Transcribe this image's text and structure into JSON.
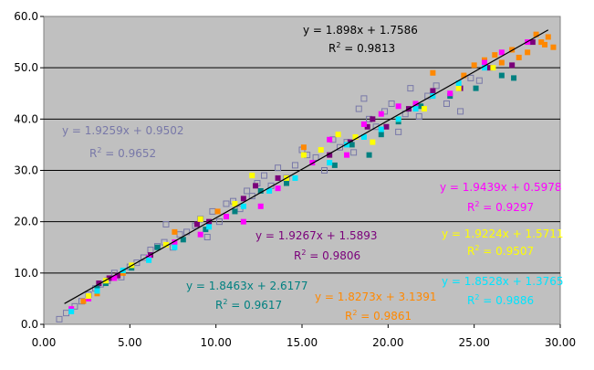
{
  "chart_data": {
    "type": "scatter",
    "title": "",
    "xlabel": "",
    "ylabel": "",
    "xlim": [
      0,
      30
    ],
    "ylim": [
      0,
      60
    ],
    "x_ticks": [
      "0.00",
      "5.00",
      "10.00",
      "15.00",
      "20.00",
      "25.00",
      "30.00"
    ],
    "y_ticks": [
      "0.0",
      "10.0",
      "20.0",
      "30.0",
      "40.0",
      "50.0",
      "60.0"
    ],
    "plot_background": "#c0c0c0",
    "grid": "horizontal",
    "trendline": {
      "slope": 1.898,
      "intercept": 1.7586,
      "x_range": [
        1.2,
        29.3
      ],
      "color": "#000000"
    },
    "series": [
      {
        "color": "#7878a8",
        "marker": "hollow-square",
        "equation": "y = 1.9259x + 0.9502",
        "r2_prefix": "R",
        "r2_value": "= 0.9652",
        "points": [
          [
            0.9,
            1.0
          ],
          [
            1.3,
            2.2
          ],
          [
            1.8,
            3.5
          ],
          [
            2.2,
            4.5
          ],
          [
            2.6,
            5.8
          ],
          [
            3.0,
            7.0
          ],
          [
            3.3,
            7.8
          ],
          [
            3.7,
            8.5
          ],
          [
            4.1,
            10.0
          ],
          [
            4.5,
            9.2
          ],
          [
            5.0,
            11.2
          ],
          [
            5.4,
            12.0
          ],
          [
            5.8,
            13.0
          ],
          [
            6.2,
            14.5
          ],
          [
            6.6,
            15.2
          ],
          [
            7.0,
            16.0
          ],
          [
            7.1,
            19.5
          ],
          [
            7.5,
            15.0
          ],
          [
            7.9,
            17.5
          ],
          [
            8.3,
            18.0
          ],
          [
            8.8,
            19.2
          ],
          [
            9.1,
            20.5
          ],
          [
            9.5,
            17.0
          ],
          [
            9.8,
            22.0
          ],
          [
            10.2,
            20.0
          ],
          [
            10.6,
            23.5
          ],
          [
            11.0,
            24.0
          ],
          [
            11.4,
            22.5
          ],
          [
            11.8,
            26.0
          ],
          [
            12.1,
            25.0
          ],
          [
            12.4,
            27.5
          ],
          [
            12.8,
            29.0
          ],
          [
            13.2,
            27.0
          ],
          [
            13.6,
            30.5
          ],
          [
            14.1,
            28.5
          ],
          [
            14.6,
            31.0
          ],
          [
            15.0,
            34.0
          ],
          [
            15.3,
            33.0
          ],
          [
            15.8,
            32.5
          ],
          [
            16.3,
            30.0
          ],
          [
            16.8,
            36.0
          ],
          [
            17.2,
            34.5
          ],
          [
            17.6,
            35.5
          ],
          [
            18.0,
            33.5
          ],
          [
            18.3,
            42.0
          ],
          [
            18.6,
            44.0
          ],
          [
            18.9,
            40.0
          ],
          [
            19.3,
            38.5
          ],
          [
            19.8,
            41.5
          ],
          [
            20.2,
            43.0
          ],
          [
            20.6,
            37.5
          ],
          [
            21.0,
            41.0
          ],
          [
            21.3,
            46.0
          ],
          [
            21.8,
            40.5
          ],
          [
            22.3,
            44.5
          ],
          [
            22.8,
            46.5
          ],
          [
            23.4,
            43.0
          ],
          [
            24.2,
            41.5
          ],
          [
            24.8,
            48.0
          ],
          [
            25.3,
            47.5
          ]
        ]
      },
      {
        "color": "#7a007a",
        "marker": "square",
        "equation": "y = 1.9267x + 1.5893",
        "r2_prefix": "R",
        "r2_value": "= 0.9806",
        "points": [
          [
            3.2,
            8.0
          ],
          [
            3.8,
            9.0
          ],
          [
            4.3,
            9.5
          ],
          [
            6.2,
            13.5
          ],
          [
            8.9,
            19.5
          ],
          [
            9.6,
            20.0
          ],
          [
            11.6,
            24.5
          ],
          [
            12.3,
            27.0
          ],
          [
            13.6,
            28.5
          ],
          [
            16.6,
            33.0
          ],
          [
            17.8,
            35.5
          ],
          [
            18.8,
            38.5
          ],
          [
            19.1,
            40.0
          ],
          [
            19.9,
            38.5
          ],
          [
            21.2,
            42.0
          ],
          [
            22.6,
            45.5
          ],
          [
            24.2,
            46.0
          ],
          [
            25.9,
            50.0
          ],
          [
            27.2,
            50.5
          ],
          [
            28.4,
            55.0
          ]
        ]
      },
      {
        "color": "#008080",
        "marker": "square",
        "equation": "y = 1.8463x + 2.6177",
        "r2_prefix": "R",
        "r2_value": "= 0.9617",
        "points": [
          [
            3.1,
            7.0
          ],
          [
            3.6,
            8.0
          ],
          [
            5.1,
            11.0
          ],
          [
            6.6,
            15.0
          ],
          [
            8.1,
            16.5
          ],
          [
            9.4,
            18.5
          ],
          [
            11.1,
            22.0
          ],
          [
            12.6,
            26.0
          ],
          [
            14.1,
            27.5
          ],
          [
            16.9,
            31.0
          ],
          [
            17.9,
            35.0
          ],
          [
            18.9,
            33.0
          ],
          [
            19.6,
            37.0
          ],
          [
            20.6,
            39.5
          ],
          [
            21.9,
            42.5
          ],
          [
            23.6,
            44.5
          ],
          [
            25.1,
            46.0
          ],
          [
            26.6,
            48.5
          ],
          [
            27.3,
            48.0
          ]
        ]
      },
      {
        "color": "#ff8800",
        "marker": "square",
        "equation": "y = 1.8273x + 3.1391",
        "r2_prefix": "R",
        "r2_value": "= 0.9861",
        "points": [
          [
            2.3,
            4.5
          ],
          [
            3.1,
            6.0
          ],
          [
            4.6,
            10.0
          ],
          [
            7.6,
            18.0
          ],
          [
            10.1,
            22.0
          ],
          [
            15.1,
            34.5
          ],
          [
            22.6,
            49.0
          ],
          [
            24.4,
            48.5
          ],
          [
            25.0,
            50.5
          ],
          [
            25.6,
            51.5
          ],
          [
            26.2,
            52.5
          ],
          [
            26.6,
            51.0
          ],
          [
            27.2,
            53.5
          ],
          [
            27.6,
            52.0
          ],
          [
            28.1,
            53.0
          ],
          [
            28.6,
            56.5
          ],
          [
            28.9,
            55.0
          ],
          [
            29.1,
            54.5
          ],
          [
            29.3,
            56.0
          ],
          [
            29.6,
            54.0
          ]
        ]
      },
      {
        "color": "#ff00ff",
        "marker": "square",
        "equation": "y = 1.9439x + 0.5978",
        "r2_prefix": "R",
        "r2_value": "= 0.9297",
        "points": [
          [
            1.6,
            3.0
          ],
          [
            2.6,
            5.0
          ],
          [
            4.1,
            9.0
          ],
          [
            6.1,
            13.0
          ],
          [
            7.6,
            16.0
          ],
          [
            9.1,
            17.5
          ],
          [
            10.6,
            21.0
          ],
          [
            11.6,
            20.0
          ],
          [
            12.6,
            23.0
          ],
          [
            13.6,
            26.5
          ],
          [
            15.6,
            31.5
          ],
          [
            16.6,
            36.0
          ],
          [
            17.6,
            33.0
          ],
          [
            18.6,
            39.0
          ],
          [
            19.6,
            41.0
          ],
          [
            20.6,
            42.5
          ],
          [
            21.6,
            43.0
          ],
          [
            23.6,
            45.0
          ],
          [
            25.6,
            51.0
          ],
          [
            26.6,
            53.0
          ],
          [
            28.1,
            55.0
          ]
        ]
      },
      {
        "color": "#ffff00",
        "marker": "square",
        "equation": "y = 1.9224x + 1.5711",
        "r2_prefix": "R",
        "r2_value": "= 0.9507",
        "points": [
          [
            2.6,
            5.5
          ],
          [
            3.6,
            8.5
          ],
          [
            5.1,
            11.5
          ],
          [
            7.1,
            15.5
          ],
          [
            9.1,
            20.5
          ],
          [
            11.1,
            23.5
          ],
          [
            12.1,
            29.0
          ],
          [
            14.1,
            28.5
          ],
          [
            15.1,
            33.0
          ],
          [
            16.1,
            34.0
          ],
          [
            17.1,
            37.0
          ],
          [
            18.1,
            36.5
          ],
          [
            19.1,
            35.5
          ],
          [
            20.6,
            40.0
          ],
          [
            22.1,
            42.0
          ],
          [
            24.1,
            46.0
          ],
          [
            26.1,
            50.0
          ]
        ]
      },
      {
        "color": "#00e5ff",
        "marker": "square",
        "equation": "y = 1.8528x + 1.3765",
        "r2_prefix": "R",
        "r2_value": "= 0.9886",
        "points": [
          [
            1.6,
            2.5
          ],
          [
            3.1,
            6.5
          ],
          [
            4.6,
            10.5
          ],
          [
            6.1,
            12.5
          ],
          [
            7.6,
            15.0
          ],
          [
            9.6,
            19.0
          ],
          [
            11.6,
            23.0
          ],
          [
            13.1,
            26.0
          ],
          [
            14.6,
            28.5
          ],
          [
            16.6,
            31.5
          ],
          [
            17.6,
            35.0
          ],
          [
            18.6,
            36.5
          ],
          [
            19.6,
            38.0
          ],
          [
            20.6,
            40.0
          ],
          [
            21.6,
            42.0
          ],
          [
            22.6,
            44.5
          ],
          [
            24.1,
            47.0
          ],
          [
            25.6,
            50.0
          ]
        ]
      }
    ],
    "overall": {
      "equation": "y = 1.898x + 1.7586",
      "r2_prefix": "R",
      "r2_value": "= 0.9813",
      "color": "#000000"
    }
  }
}
